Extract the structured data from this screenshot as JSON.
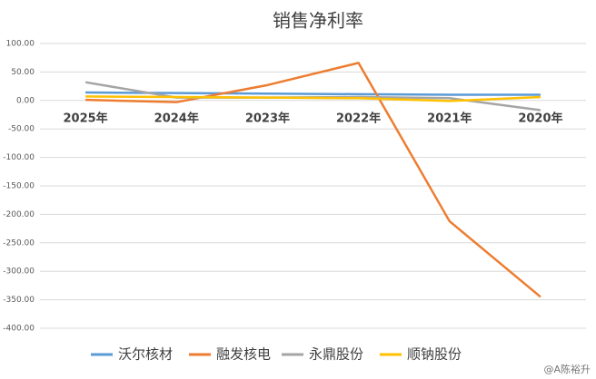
{
  "chart_data": {
    "type": "line",
    "title": "销售净利率",
    "categories": [
      "2025年",
      "2024年",
      "2023年",
      "2022年",
      "2021年",
      "2020年"
    ],
    "series": [
      {
        "name": "沃尔核材",
        "color": "#5b9bd5",
        "values": [
          14,
          13,
          12,
          11,
          10,
          10
        ]
      },
      {
        "name": "融发核电",
        "color": "#ed7d31",
        "values": [
          1,
          -3,
          27,
          66,
          -212,
          -345
        ]
      },
      {
        "name": "永鼎股份",
        "color": "#a5a5a5",
        "values": [
          32,
          5,
          5,
          6,
          4,
          -17
        ]
      },
      {
        "name": "顺钠股份",
        "color": "#ffc000",
        "values": [
          7,
          6,
          5,
          4,
          -1,
          6
        ]
      }
    ],
    "ylim": [
      -400,
      100
    ],
    "yticks": [
      {
        "value": -400,
        "label": "-400.00"
      },
      {
        "value": -350,
        "label": "-350.00"
      },
      {
        "value": -300,
        "label": "-300.00"
      },
      {
        "value": -250,
        "label": "-250.00"
      },
      {
        "value": -200,
        "label": "-200.00"
      },
      {
        "value": -150,
        "label": "-150.00"
      },
      {
        "value": -100,
        "label": "-100.00"
      },
      {
        "value": -50,
        "label": "-50.00"
      },
      {
        "value": 0,
        "label": "0.00"
      },
      {
        "value": 50,
        "label": "50.00"
      },
      {
        "value": 100,
        "label": "100.00"
      }
    ],
    "grid": true,
    "legend": "bottom",
    "watermark": "@A陈裕升"
  }
}
